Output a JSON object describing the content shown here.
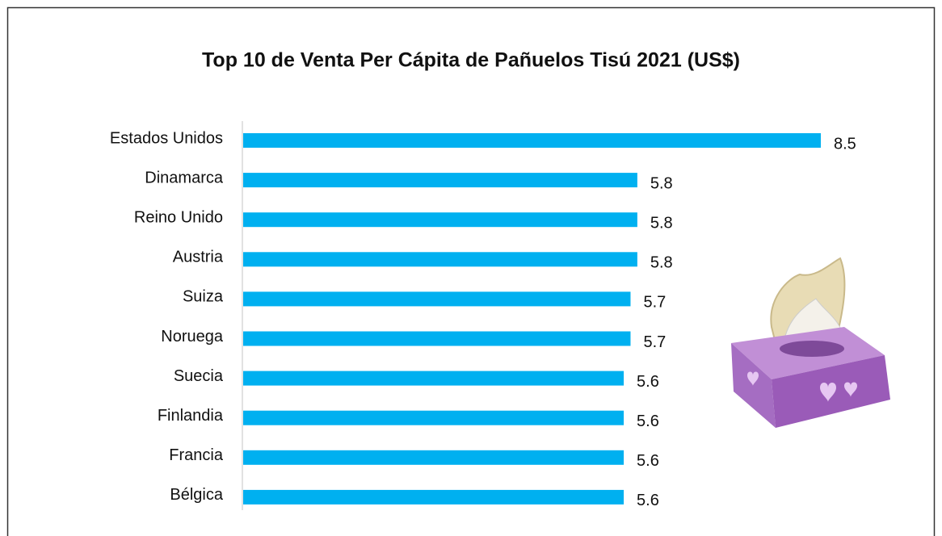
{
  "chart_data": {
    "type": "bar",
    "orientation": "horizontal",
    "title": "Top 10 de Venta Per Cápita de Pañuelos Tisú 2021 (US$)",
    "categories": [
      "Estados Unidos",
      "Dinamarca",
      "Reino Unido",
      "Austria",
      "Suiza",
      "Noruega",
      "Suecia",
      "Finlandia",
      "Francia",
      "Bélgica"
    ],
    "values": [
      8.5,
      5.8,
      5.8,
      5.8,
      5.7,
      5.7,
      5.6,
      5.6,
      5.6,
      5.6
    ],
    "color": "#00b0f0"
  }
}
